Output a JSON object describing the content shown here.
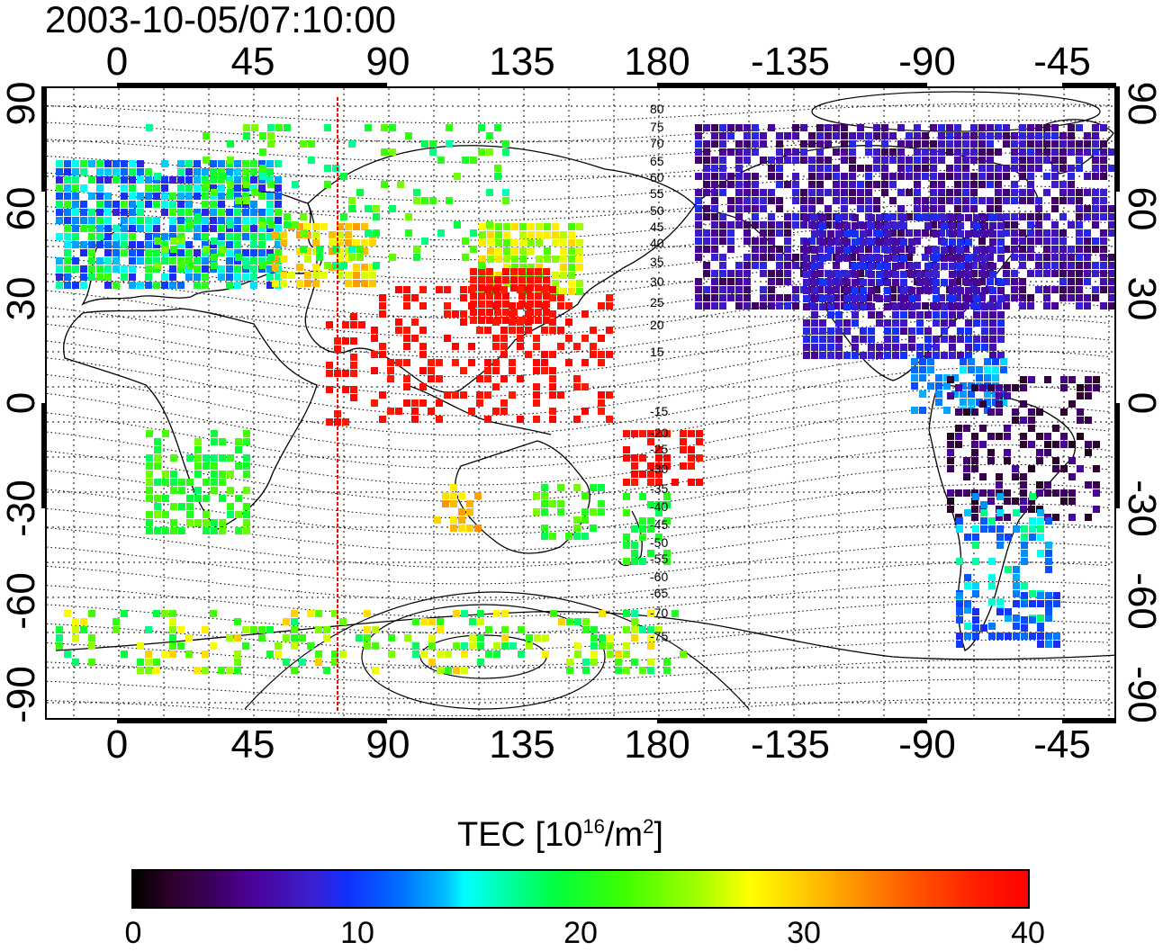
{
  "timestamp": "2003-10-05/07:10:00",
  "x_ticks": [
    "0",
    "45",
    "90",
    "135",
    "180",
    "-135",
    "-90",
    "-45"
  ],
  "y_ticks": [
    "90",
    "60",
    "30",
    "0",
    "-30",
    "-60",
    "-90"
  ],
  "contour_labels": [
    "80",
    "75",
    "70",
    "65",
    "60",
    "55",
    "50",
    "45",
    "40",
    "35",
    "30",
    "25",
    "20",
    "15",
    "-15",
    "-20",
    "-25",
    "-30",
    "-35",
    "-40",
    "-45",
    "-50",
    "-55",
    "-60",
    "-65",
    "-70",
    "-75"
  ],
  "colorbar": {
    "title_prefix": "TEC  [10",
    "title_exp1": "16",
    "title_mid": "/m",
    "title_exp2": "2",
    "title_suffix": "]",
    "labels": [
      "0",
      "10",
      "20",
      "30",
      "40"
    ]
  },
  "colors": {
    "marker_line": "#ff0000",
    "tec_low": "#000000",
    "tec_mid": "#00ff40",
    "tec_high": "#ff0000"
  }
}
